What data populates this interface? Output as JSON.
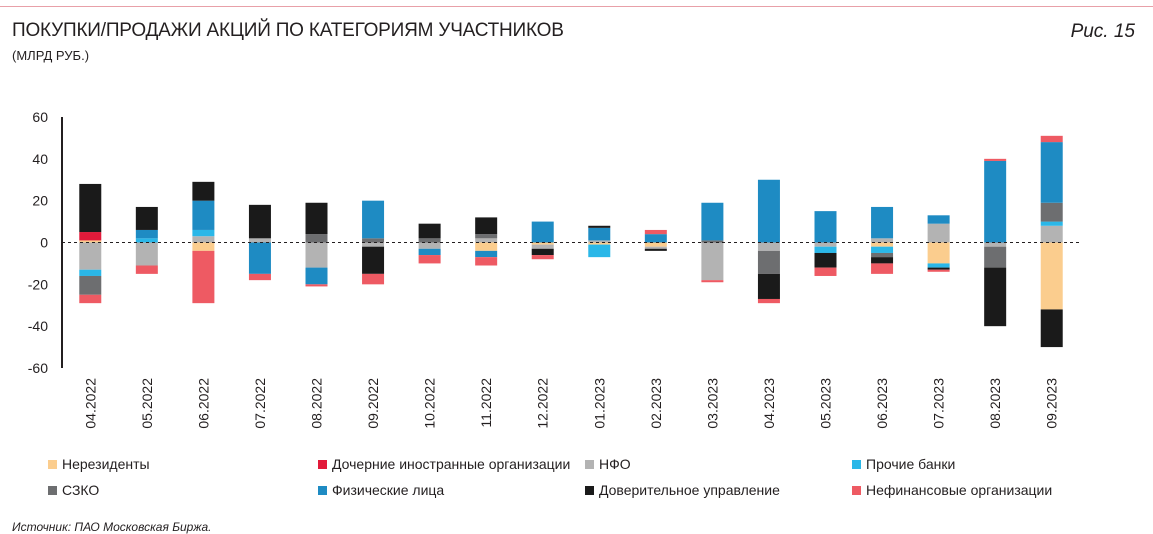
{
  "header": {
    "title": "ПОКУПКИ/ПРОДАЖИ АКЦИЙ ПО КАТЕГОРИЯМ УЧАСТНИКОВ",
    "subtitle": "(МЛРД РУБ.)",
    "figure_label": "Рис. 15"
  },
  "footer": {
    "source": "Источник: ПАО Московская Биржа."
  },
  "chart_data": {
    "type": "bar",
    "stacked": true,
    "title": "ПОКУПКИ/ПРОДАЖИ АКЦИЙ ПО КАТЕГОРИЯМ УЧАСТНИКОВ",
    "ylabel": "(МЛРД РУБ.)",
    "xlabel": "",
    "ylim": [
      -60,
      60
    ],
    "yticks": [
      60,
      40,
      20,
      0,
      -20,
      -40,
      -60
    ],
    "grid": false,
    "legend_position": "bottom",
    "categories": [
      "04.2022",
      "05.2022",
      "06.2022",
      "07.2022",
      "08.2022",
      "09.2022",
      "10.2022",
      "11.2022",
      "12.2022",
      "01.2023",
      "02.2023",
      "03.2023",
      "04.2023",
      "05.2023",
      "06.2023",
      "07.2023",
      "08.2023",
      "09.2023"
    ],
    "series": [
      {
        "name": "Нерезиденты",
        "color": "#fbcd8e",
        "values": [
          1,
          0,
          -4,
          0,
          0,
          0,
          0,
          -4,
          -1,
          -1,
          -2,
          0,
          0,
          0,
          -2,
          -10,
          0,
          -32
        ]
      },
      {
        "name": "Дочерние иностранные организации",
        "color": "#e21a3a",
        "values": [
          4,
          0,
          0,
          0,
          0,
          0,
          0,
          0,
          0,
          0,
          0,
          0,
          0,
          0,
          0,
          0,
          0,
          0
        ]
      },
      {
        "name": "НФО",
        "color": "#b3b3b3",
        "values": [
          -13,
          -11,
          3,
          2,
          -12,
          -2,
          -3,
          2,
          -2,
          1,
          -1,
          -18,
          -4,
          -2,
          2,
          9,
          -2,
          8
        ]
      },
      {
        "name": "Прочие банки",
        "color": "#2ab7e8",
        "values": [
          -3,
          2,
          3,
          0,
          0,
          0,
          0,
          0,
          0,
          -6,
          0,
          0,
          0,
          -3,
          -3,
          -2,
          0,
          2
        ]
      },
      {
        "name": "СЗКО",
        "color": "#6d6e70",
        "values": [
          -9,
          0,
          0,
          0,
          4,
          2,
          2,
          2,
          0,
          0,
          0,
          1,
          -11,
          0,
          -2,
          0,
          -10,
          9
        ]
      },
      {
        "name": "Физические лица",
        "color": "#1e8bc3",
        "values": [
          0,
          4,
          14,
          -15,
          -8,
          18,
          -3,
          -3,
          10,
          6,
          4,
          18,
          30,
          15,
          15,
          4,
          39,
          29
        ]
      },
      {
        "name": "Доверительное управление",
        "color": "#1a1a1a",
        "values": [
          23,
          11,
          9,
          16,
          15,
          -13,
          7,
          8,
          -3,
          1,
          -1,
          0,
          -12,
          -7,
          -3,
          -1,
          -28,
          -18
        ]
      },
      {
        "name": "Нефинансовые организации",
        "color": "#ee5a63",
        "values": [
          -4,
          -4,
          -25,
          -3,
          -1,
          -5,
          -4,
          -4,
          -2,
          0,
          2,
          -1,
          -2,
          -4,
          -5,
          -1,
          1,
          3
        ]
      }
    ]
  }
}
